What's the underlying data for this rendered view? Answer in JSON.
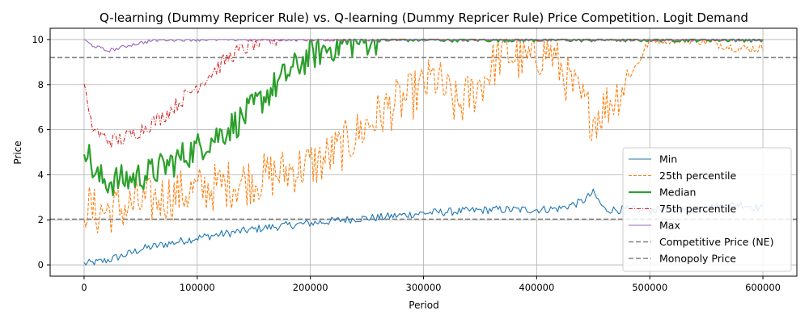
{
  "chart_data": {
    "type": "line",
    "title": "Q-learning (Dummy Repricer Rule) vs. Q-learning (Dummy Repricer Rule) Price Competition. Logit Demand",
    "xlabel": "Period",
    "ylabel": "Price",
    "xlim": [
      -30000,
      630000
    ],
    "ylim": [
      -0.5,
      10.5
    ],
    "xticks": [
      0,
      100000,
      200000,
      300000,
      400000,
      500000,
      600000
    ],
    "xtick_labels": [
      "0",
      "100000",
      "200000",
      "300000",
      "400000",
      "500000",
      "600000"
    ],
    "yticks": [
      0,
      2,
      4,
      6,
      8,
      10
    ],
    "ytick_labels": [
      "0",
      "2",
      "4",
      "6",
      "8",
      "10"
    ],
    "grid": true,
    "legend_position": "lower-right",
    "series": [
      {
        "name": "Min",
        "color": "#1f77b4",
        "style": "solid",
        "x": [
          0,
          10000,
          20000,
          30000,
          40000,
          50000,
          60000,
          80000,
          100000,
          120000,
          140000,
          160000,
          180000,
          200000,
          220000,
          240000,
          260000,
          280000,
          300000,
          320000,
          340000,
          360000,
          380000,
          400000,
          420000,
          440000,
          450000,
          460000,
          480000,
          500000,
          520000,
          540000,
          560000,
          580000,
          600000
        ],
        "y": [
          0.05,
          0.1,
          0.2,
          0.35,
          0.5,
          0.7,
          0.8,
          1.0,
          1.2,
          1.35,
          1.5,
          1.65,
          1.75,
          1.85,
          1.95,
          2.05,
          2.1,
          2.2,
          2.3,
          2.35,
          2.4,
          2.45,
          2.45,
          2.45,
          2.5,
          2.8,
          3.2,
          2.45,
          2.45,
          2.45,
          2.45,
          2.45,
          2.6,
          2.7,
          2.5
        ]
      },
      {
        "name": "25th percentile",
        "color": "#ff7f0e",
        "style": "dashed",
        "x": [
          0,
          10000,
          30000,
          50000,
          70000,
          100000,
          130000,
          160000,
          190000,
          210000,
          230000,
          250000,
          270000,
          290000,
          310000,
          330000,
          350000,
          370000,
          390000,
          410000,
          430000,
          450000,
          470000,
          490000,
          500000,
          520000,
          540000,
          560000,
          580000,
          600000
        ],
        "y": [
          2.7,
          2.3,
          2.5,
          2.7,
          3.0,
          3.3,
          3.6,
          3.9,
          4.3,
          4.6,
          5.3,
          6.2,
          7.0,
          7.5,
          8.3,
          7.0,
          8.0,
          9.5,
          9.0,
          9.6,
          8.0,
          6.5,
          7.5,
          9.0,
          10.0,
          10.0,
          10.0,
          9.8,
          9.6,
          9.6
        ]
      },
      {
        "name": "Median",
        "color": "#2ca02c",
        "style": "solid-thick",
        "x": [
          0,
          10000,
          20000,
          40000,
          60000,
          80000,
          100000,
          120000,
          140000,
          160000,
          180000,
          200000,
          220000,
          240000,
          260000,
          300000,
          350000,
          400000,
          450000,
          500000,
          550000,
          600000
        ],
        "y": [
          5.5,
          3.9,
          3.7,
          3.8,
          4.1,
          4.6,
          5.2,
          5.8,
          6.5,
          7.5,
          8.5,
          9.3,
          9.7,
          9.9,
          10.0,
          10.0,
          10.0,
          10.0,
          10.0,
          10.0,
          10.0,
          10.0
        ]
      },
      {
        "name": "75th percentile",
        "color": "#d62728",
        "style": "dashdot",
        "x": [
          0,
          5000,
          15000,
          25000,
          35000,
          50000,
          70000,
          90000,
          110000,
          130000,
          150000,
          170000,
          200000,
          300000,
          400000,
          500000,
          600000
        ],
        "y": [
          8.2,
          6.3,
          5.7,
          5.5,
          5.6,
          6.0,
          6.6,
          7.5,
          8.4,
          9.3,
          9.8,
          10.0,
          10.0,
          10.0,
          10.0,
          10.0,
          10.0
        ]
      },
      {
        "name": "Max",
        "color": "#9467bd",
        "style": "solid",
        "x": [
          0,
          5000,
          10000,
          20000,
          30000,
          40000,
          50000,
          60000,
          70000,
          80000,
          100000,
          200000,
          300000,
          400000,
          500000,
          600000
        ],
        "y": [
          10.0,
          9.8,
          9.7,
          9.5,
          9.6,
          9.75,
          9.85,
          9.95,
          10.0,
          10.0,
          10.0,
          10.0,
          10.0,
          10.0,
          10.0,
          10.0
        ]
      }
    ],
    "reference_lines": [
      {
        "name": "Competitive Price (NE)",
        "y": 2.03,
        "color": "#808080",
        "style": "dashed"
      },
      {
        "name": "Monopoly Price",
        "y": 9.2,
        "color": "#808080",
        "style": "dashed"
      }
    ]
  }
}
